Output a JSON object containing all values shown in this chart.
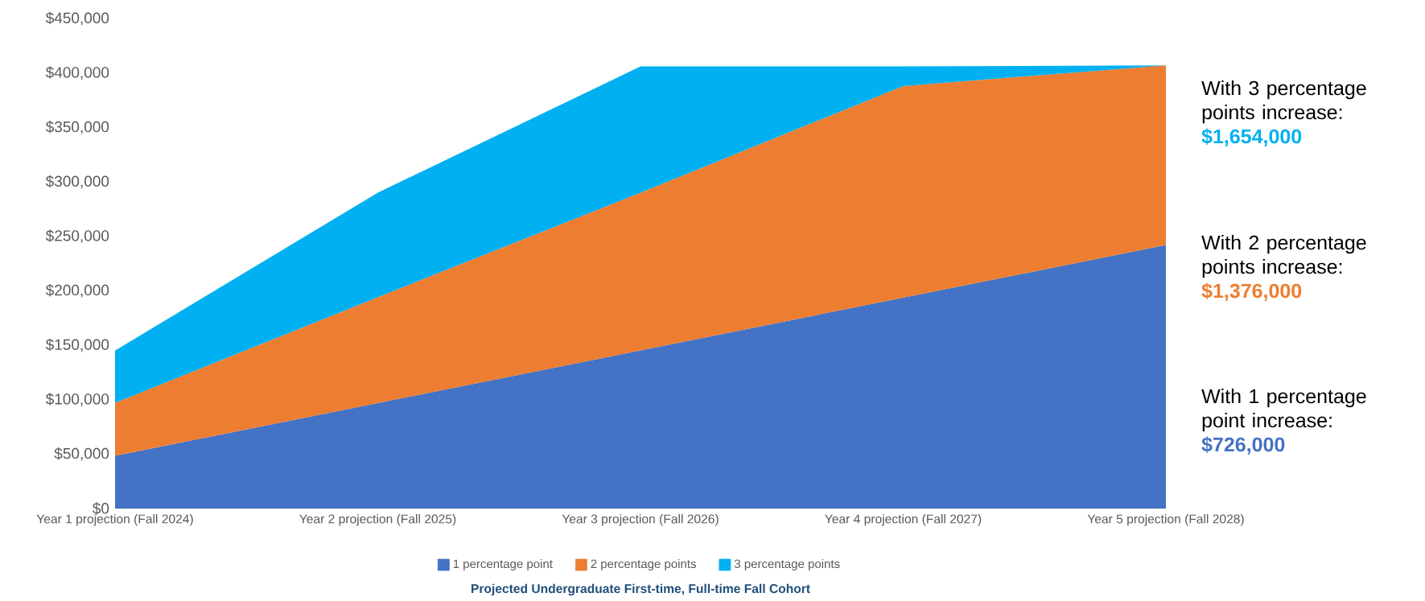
{
  "chart_data": {
    "type": "area",
    "title": "Projected Undergraduate First-time, Full-time Fall Cohort",
    "categories": [
      "Year 1 projection (Fall 2024)",
      "Year 2 projection (Fall 2025)",
      "Year 3 projection (Fall 2026)",
      "Year 4 projection (Fall 2027)",
      "Year 5 projection (Fall 2028)"
    ],
    "series": [
      {
        "name": "1 percentage point",
        "color": "#4472c4",
        "values": [
          48400,
          96800,
          145200,
          193600,
          242000
        ]
      },
      {
        "name": "2 percentage points",
        "color": "#ed7d31",
        "values": [
          97000,
          194000,
          290000,
          388000,
          407000
        ]
      },
      {
        "name": "3 percentage points",
        "color": "#00b0f0",
        "values": [
          145000,
          290000,
          406000,
          406000,
          407000
        ]
      }
    ],
    "ylim": [
      0,
      450000
    ],
    "yticks": [
      {
        "value": 0,
        "label": "$0"
      },
      {
        "value": 50000,
        "label": "$50,000"
      },
      {
        "value": 100000,
        "label": "$100,000"
      },
      {
        "value": 150000,
        "label": "$150,000"
      },
      {
        "value": 200000,
        "label": "$200,000"
      },
      {
        "value": 250000,
        "label": "$250,000"
      },
      {
        "value": 300000,
        "label": "$300,000"
      },
      {
        "value": 350000,
        "label": "$350,000"
      },
      {
        "value": 400000,
        "label": "$400,000"
      },
      {
        "value": 450000,
        "label": "$450,000"
      }
    ],
    "legend": "bottom",
    "annotations": [
      "With 3 percentage points increase:",
      "$1,654,000",
      "With 2 percentage points increase:",
      "$1,376,000",
      "With 1 percentage point increase:",
      "$726,000"
    ]
  }
}
